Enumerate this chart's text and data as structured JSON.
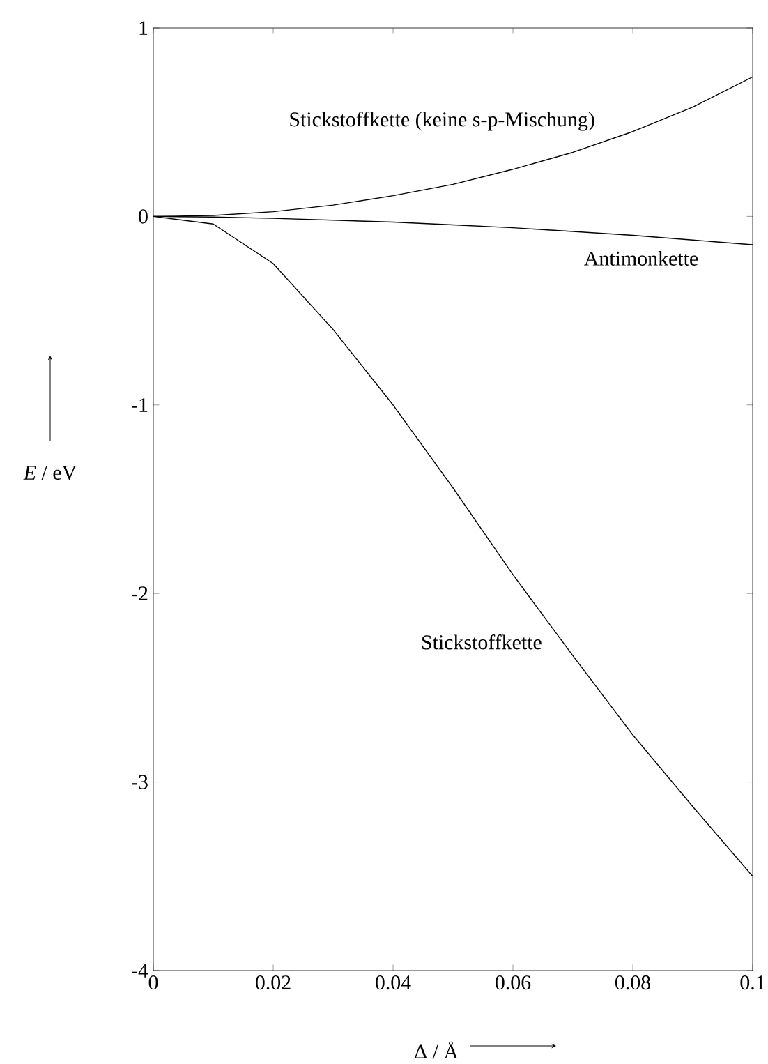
{
  "chart_data": {
    "type": "line",
    "xlabel": "Δ / Å",
    "ylabel": "*E* / eV",
    "xlim": [
      0,
      0.1
    ],
    "ylim": [
      -4,
      1
    ],
    "xticks": [
      0,
      0.02,
      0.04,
      0.06,
      0.08,
      0.1
    ],
    "yticks": [
      -4,
      -3,
      -2,
      -1,
      0,
      1
    ],
    "marker": "none",
    "line_style": "solid",
    "x": [
      0,
      0.01,
      0.02,
      0.03,
      0.04,
      0.05,
      0.06,
      0.07,
      0.08,
      0.09,
      0.1
    ],
    "series": [
      {
        "name": "Stickstoffkette (keine s-p-Mischung)",
        "color": "#000000",
        "values": [
          0,
          0.005,
          0.025,
          0.06,
          0.11,
          0.17,
          0.25,
          0.34,
          0.45,
          0.58,
          0.74
        ]
      },
      {
        "name": "Antimonkette",
        "color": "#000000",
        "values": [
          0,
          -0.003,
          -0.01,
          -0.02,
          -0.03,
          -0.045,
          -0.06,
          -0.08,
          -0.1,
          -0.125,
          -0.15
        ]
      },
      {
        "name": "Stickstoffkette",
        "color": "#000000",
        "values": [
          0,
          -0.04,
          -0.25,
          -0.6,
          -1.0,
          -1.44,
          -1.9,
          -2.33,
          -2.75,
          -3.13,
          -3.5
        ]
      }
    ]
  }
}
